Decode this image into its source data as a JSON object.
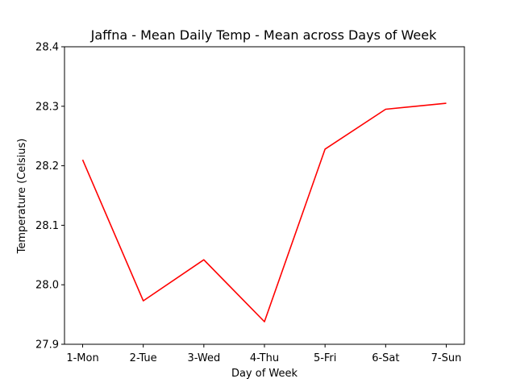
{
  "chart_data": {
    "type": "line",
    "title": "Jaffna - Mean Daily Temp - Mean across Days of Week",
    "xlabel": "Day of Week",
    "ylabel": "Temperature (Celsius)",
    "categories": [
      "1-Mon",
      "2-Tue",
      "3-Wed",
      "4-Thu",
      "5-Fri",
      "6-Sat",
      "7-Sun"
    ],
    "series": [
      {
        "values": [
          28.21,
          27.973,
          28.042,
          27.938,
          28.228,
          28.295,
          28.305
        ],
        "color": "#ff0000"
      }
    ],
    "ylim": [
      27.9,
      28.4
    ],
    "yticks": [
      "27.9",
      "28.0",
      "28.1",
      "28.2",
      "28.3",
      "28.4"
    ],
    "grid": false,
    "legend": "none"
  }
}
